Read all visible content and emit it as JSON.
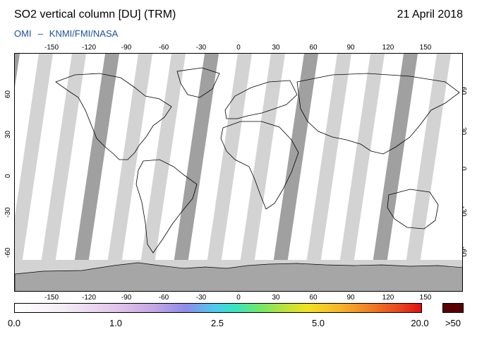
{
  "header": {
    "title": "SO2 vertical column [DU] (TRM)",
    "date": "21 April 2018",
    "credit_left": "OMI",
    "credit_sep": "–",
    "credit_right": "KNMI/FMI/NASA"
  },
  "map": {
    "lon_ticks": [
      "-150",
      "-120",
      "-90",
      "-60",
      "-30",
      "0",
      "30",
      "60",
      "90",
      "120",
      "150"
    ],
    "lat_ticks": [
      "60",
      "30",
      "0",
      "-30",
      "-60"
    ],
    "colors": {
      "ocean": "#ffffff",
      "land_outline": "#000000",
      "no_data_swath": "#d3d3d3",
      "no_data_dark": "#a0a0a0",
      "antarctica": "#a6a6a6"
    }
  },
  "colorbar": {
    "labels": [
      "0.0",
      "1.0",
      "2.5",
      "5.0",
      "20.0"
    ],
    "over_label": ">50",
    "over_color": "#5a0000"
  }
}
